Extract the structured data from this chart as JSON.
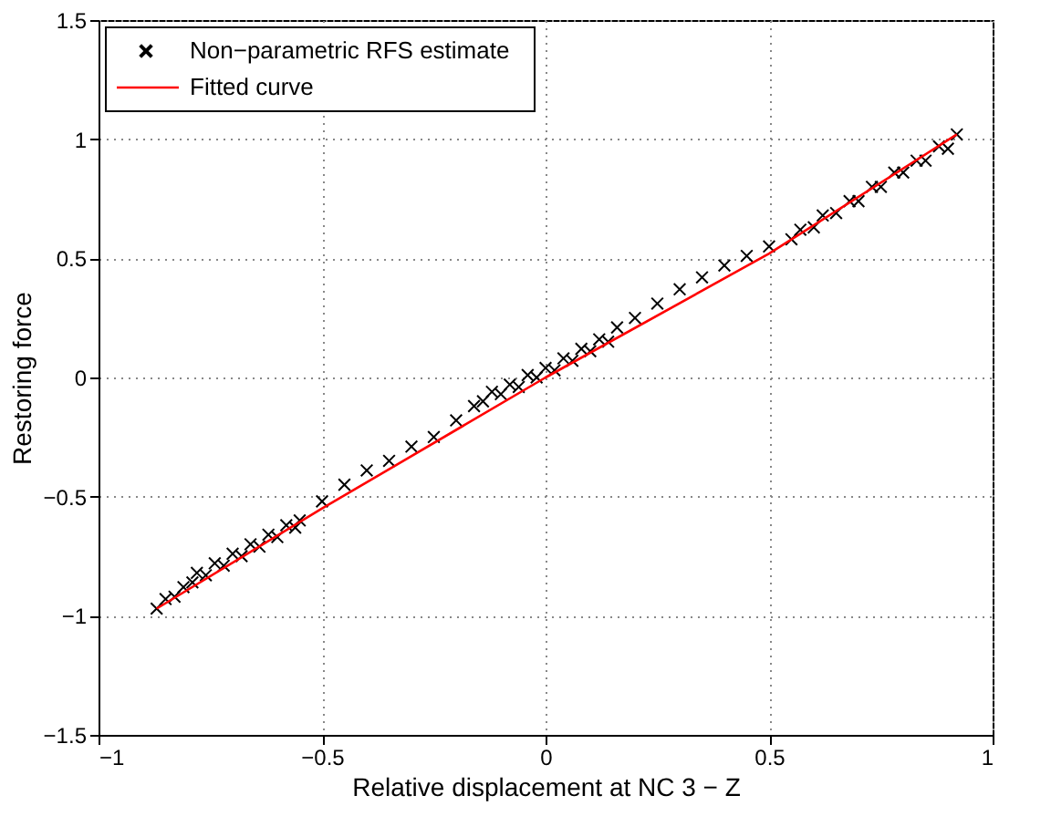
{
  "chart_data": {
    "type": "scatter",
    "xlabel": "Relative displacement at NC 3 − Z",
    "ylabel": "Restoring force",
    "xlim": [
      -1,
      1
    ],
    "xticks": [
      -1,
      -0.5,
      0,
      0.5,
      1
    ],
    "ylim": [
      -1.5,
      1.5
    ],
    "yticks": [
      -1.5,
      -1,
      -0.5,
      0,
      0.5,
      1,
      1.5
    ],
    "grid": true,
    "legend": "top left",
    "series": [
      {
        "name": "Non−parametric RFS estimate",
        "marker": "cross",
        "color": "#000000",
        "x": [
          -0.87,
          -0.85,
          -0.83,
          -0.81,
          -0.79,
          -0.78,
          -0.76,
          -0.74,
          -0.72,
          -0.7,
          -0.68,
          -0.66,
          -0.64,
          -0.62,
          -0.6,
          -0.58,
          -0.56,
          -0.55,
          -0.5,
          -0.45,
          -0.4,
          -0.35,
          -0.3,
          -0.25,
          -0.2,
          -0.16,
          -0.14,
          -0.12,
          -0.1,
          -0.08,
          -0.06,
          -0.04,
          -0.02,
          0.0,
          0.02,
          0.04,
          0.06,
          0.08,
          0.1,
          0.12,
          0.14,
          0.16,
          0.2,
          0.25,
          0.3,
          0.35,
          0.4,
          0.45,
          0.5,
          0.55,
          0.57,
          0.6,
          0.62,
          0.65,
          0.68,
          0.7,
          0.73,
          0.75,
          0.78,
          0.8,
          0.83,
          0.85,
          0.88,
          0.9,
          0.92
        ],
        "values": [
          -0.97,
          -0.93,
          -0.92,
          -0.88,
          -0.86,
          -0.82,
          -0.83,
          -0.78,
          -0.79,
          -0.74,
          -0.75,
          -0.7,
          -0.71,
          -0.66,
          -0.67,
          -0.62,
          -0.63,
          -0.6,
          -0.52,
          -0.45,
          -0.39,
          -0.35,
          -0.29,
          -0.25,
          -0.18,
          -0.12,
          -0.1,
          -0.06,
          -0.07,
          -0.03,
          -0.04,
          0.01,
          0.0,
          0.04,
          0.03,
          0.08,
          0.07,
          0.12,
          0.11,
          0.16,
          0.15,
          0.21,
          0.25,
          0.31,
          0.37,
          0.42,
          0.47,
          0.51,
          0.55,
          0.58,
          0.62,
          0.63,
          0.68,
          0.69,
          0.74,
          0.74,
          0.8,
          0.8,
          0.86,
          0.86,
          0.91,
          0.91,
          0.97,
          0.96,
          1.02
        ]
      },
      {
        "name": "Fitted curve",
        "type": "line",
        "line_style": "solid",
        "color": "#ff0000",
        "x": [
          -0.87,
          -0.5,
          0,
          0.5,
          0.92
        ],
        "values": [
          -0.97,
          -0.55,
          0.0,
          0.52,
          1.02
        ]
      }
    ]
  }
}
